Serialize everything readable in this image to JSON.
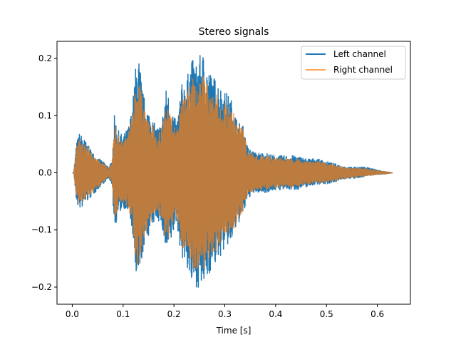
{
  "chart_data": {
    "type": "line",
    "title": "Stereo signals",
    "xlabel": "Time [s]",
    "ylabel": "",
    "xlim": [
      -0.03,
      0.665
    ],
    "ylim": [
      -0.23,
      0.23
    ],
    "xticks": [
      0.0,
      0.1,
      0.2,
      0.3,
      0.4,
      0.5,
      0.6
    ],
    "xtick_labels": [
      "0.0",
      "0.1",
      "0.2",
      "0.3",
      "0.4",
      "0.5",
      "0.6"
    ],
    "yticks": [
      -0.2,
      -0.1,
      0.0,
      0.1,
      0.2
    ],
    "ytick_labels": [
      "−0.2",
      "−0.1",
      "0.0",
      "0.1",
      "0.2"
    ],
    "grid": false,
    "legend_position": "top-right",
    "duration": 0.63,
    "series": [
      {
        "name": "Left channel",
        "color": "#1f77b4",
        "envelope": {
          "t": [
            0.0,
            0.003,
            0.008,
            0.013,
            0.02,
            0.03,
            0.045,
            0.06,
            0.072,
            0.078,
            0.083,
            0.09,
            0.1,
            0.11,
            0.118,
            0.125,
            0.132,
            0.138,
            0.145,
            0.155,
            0.165,
            0.175,
            0.185,
            0.195,
            0.205,
            0.215,
            0.225,
            0.235,
            0.245,
            0.255,
            0.265,
            0.275,
            0.285,
            0.295,
            0.305,
            0.315,
            0.325,
            0.335,
            0.345,
            0.36,
            0.38,
            0.4,
            0.42,
            0.44,
            0.46,
            0.48,
            0.5,
            0.52,
            0.54,
            0.56,
            0.58,
            0.6,
            0.615,
            0.63
          ],
          "upper": [
            0.0,
            0.0,
            0.05,
            0.07,
            0.065,
            0.05,
            0.03,
            0.02,
            0.01,
            0.02,
            0.1,
            0.075,
            0.065,
            0.08,
            0.115,
            0.19,
            0.2,
            0.145,
            0.12,
            0.1,
            0.08,
            0.085,
            0.15,
            0.12,
            0.085,
            0.155,
            0.165,
            0.2,
            0.19,
            0.215,
            0.19,
            0.17,
            0.165,
            0.145,
            0.14,
            0.125,
            0.09,
            0.085,
            0.045,
            0.035,
            0.035,
            0.03,
            0.03,
            0.03,
            0.025,
            0.025,
            0.02,
            0.015,
            0.01,
            0.01,
            0.01,
            0.005,
            0.002,
            0.0
          ],
          "lower": [
            0.0,
            0.0,
            -0.05,
            -0.065,
            -0.06,
            -0.05,
            -0.035,
            -0.02,
            -0.01,
            -0.02,
            -0.1,
            -0.075,
            -0.06,
            -0.07,
            -0.1,
            -0.19,
            -0.195,
            -0.145,
            -0.12,
            -0.1,
            -0.08,
            -0.09,
            -0.15,
            -0.12,
            -0.085,
            -0.15,
            -0.165,
            -0.2,
            -0.2,
            -0.205,
            -0.19,
            -0.165,
            -0.16,
            -0.14,
            -0.13,
            -0.12,
            -0.09,
            -0.08,
            -0.045,
            -0.035,
            -0.035,
            -0.03,
            -0.03,
            -0.03,
            -0.025,
            -0.02,
            -0.02,
            -0.015,
            -0.01,
            -0.01,
            -0.005,
            -0.003,
            -0.002,
            0.0
          ]
        }
      },
      {
        "name": "Right channel",
        "color": "#ff7f0e",
        "envelope": {
          "t": [
            0.0,
            0.003,
            0.008,
            0.013,
            0.02,
            0.03,
            0.045,
            0.06,
            0.072,
            0.078,
            0.083,
            0.09,
            0.1,
            0.11,
            0.118,
            0.125,
            0.132,
            0.138,
            0.145,
            0.155,
            0.165,
            0.175,
            0.185,
            0.195,
            0.205,
            0.215,
            0.225,
            0.235,
            0.245,
            0.255,
            0.265,
            0.275,
            0.285,
            0.295,
            0.305,
            0.315,
            0.325,
            0.335,
            0.345,
            0.36,
            0.38,
            0.4,
            0.42,
            0.44,
            0.46,
            0.48,
            0.5,
            0.52,
            0.54,
            0.56,
            0.58,
            0.6,
            0.615,
            0.63
          ],
          "upper": [
            0.0,
            0.0,
            0.045,
            0.06,
            0.055,
            0.045,
            0.027,
            0.017,
            0.008,
            0.017,
            0.085,
            0.065,
            0.055,
            0.07,
            0.1,
            0.165,
            0.17,
            0.125,
            0.105,
            0.09,
            0.07,
            0.075,
            0.12,
            0.1,
            0.075,
            0.13,
            0.14,
            0.17,
            0.16,
            0.175,
            0.16,
            0.14,
            0.14,
            0.125,
            0.12,
            0.11,
            0.085,
            0.08,
            0.04,
            0.03,
            0.03,
            0.027,
            0.025,
            0.025,
            0.02,
            0.02,
            0.017,
            0.013,
            0.009,
            0.008,
            0.007,
            0.004,
            0.002,
            0.0
          ],
          "lower": [
            0.0,
            0.0,
            -0.045,
            -0.057,
            -0.052,
            -0.045,
            -0.03,
            -0.017,
            -0.008,
            -0.017,
            -0.085,
            -0.065,
            -0.052,
            -0.062,
            -0.088,
            -0.165,
            -0.17,
            -0.125,
            -0.105,
            -0.088,
            -0.07,
            -0.078,
            -0.125,
            -0.1,
            -0.075,
            -0.13,
            -0.14,
            -0.17,
            -0.17,
            -0.175,
            -0.16,
            -0.14,
            -0.135,
            -0.12,
            -0.112,
            -0.105,
            -0.08,
            -0.07,
            -0.04,
            -0.03,
            -0.03,
            -0.027,
            -0.025,
            -0.025,
            -0.02,
            -0.017,
            -0.017,
            -0.013,
            -0.009,
            -0.008,
            -0.005,
            -0.003,
            -0.002,
            0.0
          ]
        }
      }
    ]
  }
}
